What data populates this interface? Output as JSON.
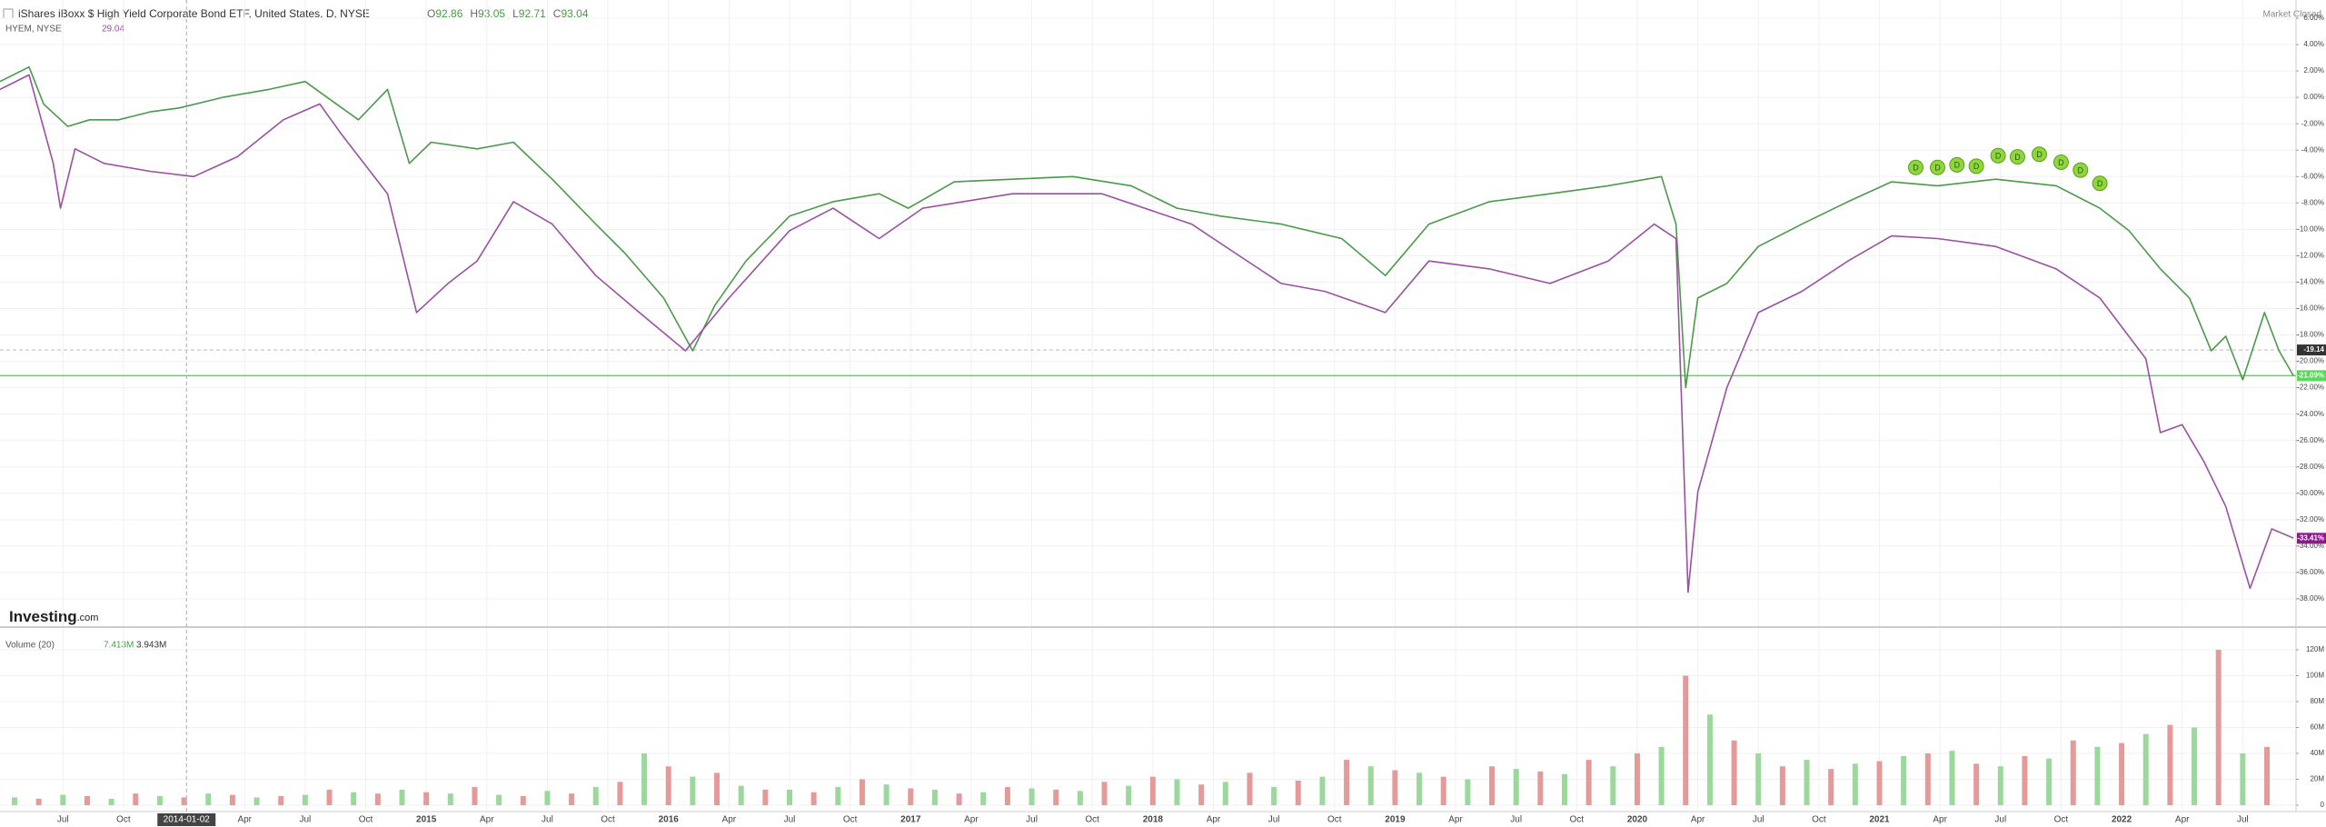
{
  "chart_data": {
    "type": "line",
    "title": "iShares iBoxx $ High Yield Corporate Bond ETF, United States, D, NYSE",
    "ohlc": [
      {
        "label": "O",
        "value": 92.86
      },
      {
        "label": "H",
        "value": 93.05
      },
      {
        "label": "L",
        "value": 92.71
      },
      {
        "label": "C",
        "value": 93.04
      }
    ],
    "compare_label": "HYEM, NYSE",
    "compare_value": 29.04,
    "status": "Market Closed",
    "logo": {
      "bold": "Investing",
      "rest": ".com"
    },
    "xlim": [
      2013.24,
      2022.72
    ],
    "xticks": [
      {
        "value": 2013.5,
        "label": "Jul"
      },
      {
        "value": 2013.75,
        "label": "Oct"
      },
      {
        "value": 2014.25,
        "label": "Apr"
      },
      {
        "value": 2014.5,
        "label": "Jul"
      },
      {
        "value": 2014.75,
        "label": "Oct"
      },
      2015,
      {
        "value": 2015.25,
        "label": "Apr"
      },
      {
        "value": 2015.5,
        "label": "Jul"
      },
      {
        "value": 2015.75,
        "label": "Oct"
      },
      2016,
      {
        "value": 2016.25,
        "label": "Apr"
      },
      {
        "value": 2016.5,
        "label": "Jul"
      },
      {
        "value": 2016.75,
        "label": "Oct"
      },
      2017,
      {
        "value": 2017.25,
        "label": "Apr"
      },
      {
        "value": 2017.5,
        "label": "Jul"
      },
      {
        "value": 2017.75,
        "label": "Oct"
      },
      2018,
      {
        "value": 2018.25,
        "label": "Apr"
      },
      {
        "value": 2018.5,
        "label": "Jul"
      },
      {
        "value": 2018.75,
        "label": "Oct"
      },
      2019,
      {
        "value": 2019.25,
        "label": "Apr"
      },
      {
        "value": 2019.5,
        "label": "Jul"
      },
      {
        "value": 2019.75,
        "label": "Oct"
      },
      2020,
      {
        "value": 2020.25,
        "label": "Apr"
      },
      {
        "value": 2020.5,
        "label": "Jul"
      },
      {
        "value": 2020.75,
        "label": "Oct"
      },
      2021,
      {
        "value": 2021.25,
        "label": "Apr"
      },
      {
        "value": 2021.5,
        "label": "Jul"
      },
      {
        "value": 2021.75,
        "label": "Oct"
      },
      2022,
      {
        "value": 2022.25,
        "label": "Apr"
      },
      {
        "value": 2022.5,
        "label": "Jul"
      }
    ],
    "ylim": [
      6,
      -38
    ],
    "yticks": [
      {
        "value": 6,
        "label": "6.00%"
      },
      {
        "value": 4,
        "label": "4.00%"
      },
      {
        "value": 2,
        "label": "2.00%"
      },
      {
        "value": 0,
        "label": "0.00%"
      },
      {
        "value": -2,
        "label": "-2.00%"
      },
      {
        "value": -4,
        "label": "-4.00%"
      },
      {
        "value": -6,
        "label": "-6.00%"
      },
      {
        "value": -8,
        "label": "-8.00%"
      },
      {
        "value": -10,
        "label": "-10.00%"
      },
      {
        "value": -12,
        "label": "-12.00%"
      },
      {
        "value": -14,
        "label": "-14.00%"
      },
      {
        "value": -16,
        "label": "-16.00%"
      },
      {
        "value": -18,
        "label": "-18.00%"
      },
      {
        "value": -20,
        "label": "-20.00%"
      },
      {
        "value": -22,
        "label": "-22.00%"
      },
      {
        "value": -24,
        "label": "-24.00%"
      },
      {
        "value": -26,
        "label": "-26.00%"
      },
      {
        "value": -28,
        "label": "-28.00%"
      },
      {
        "value": -30,
        "label": "-30.00%"
      },
      {
        "value": -32,
        "label": "-32.00%"
      },
      {
        "value": -34,
        "label": "-34.00%"
      },
      {
        "value": -36,
        "label": "-36.00%"
      },
      {
        "value": -38,
        "label": "-38.00%"
      }
    ],
    "grid": true,
    "series": [
      {
        "color": "#4a9a4a",
        "x": [
          2013.24,
          2013.36,
          2013.42,
          2013.52,
          2013.61,
          2013.73,
          2013.86,
          2013.98,
          2014.16,
          2014.35,
          2014.5,
          2014.56,
          2014.72,
          2014.84,
          2014.93,
          2015.02,
          2015.21,
          2015.36,
          2015.52,
          2015.7,
          2015.82,
          2015.98,
          2016.1,
          2016.19,
          2016.32,
          2016.5,
          2016.68,
          2016.87,
          2016.99,
          2017.18,
          2017.42,
          2017.67,
          2017.91,
          2018.1,
          2018.28,
          2018.53,
          2018.78,
          2018.96,
          2019.14,
          2019.39,
          2019.64,
          2019.88,
          2020.1,
          2020.16,
          2020.2,
          2020.25,
          2020.37,
          2020.5,
          2020.68,
          2020.87,
          2021.05,
          2021.24,
          2021.48,
          2021.73,
          2021.91,
          2022.03,
          2022.16,
          2022.28,
          2022.37,
          2022.43,
          2022.5,
          2022.59,
          2022.65,
          2022.71
        ],
        "values": [
          1.2,
          2.3,
          -0.5,
          -2.2,
          -1.7,
          -1.7,
          -1.1,
          -0.8,
          0,
          0.6,
          1.2,
          0.4,
          -1.7,
          0.6,
          -5,
          -3.4,
          -3.9,
          -3.4,
          -6.2,
          -9.6,
          -11.8,
          -15.2,
          -19.2,
          -15.8,
          -12.4,
          -9,
          -7.9,
          -7.3,
          -8.4,
          -6.4,
          -6.2,
          -6,
          -6.7,
          -8.4,
          -9,
          -9.6,
          -10.7,
          -13.5,
          -9.6,
          -7.9,
          -7.3,
          -6.7,
          -6,
          -9.6,
          -22,
          -15.2,
          -14.1,
          -11.3,
          -9.6,
          -7.9,
          -6.4,
          -6.7,
          -6.2,
          -6.7,
          -8.4,
          -10.1,
          -13,
          -15.2,
          -19.2,
          -18.1,
          -21.4,
          -16.3,
          -19.2,
          -21.1
        ]
      },
      {
        "color": "#9b4fa3",
        "x": [
          2013.24,
          2013.36,
          2013.46,
          2013.49,
          2013.55,
          2013.67,
          2013.86,
          2014.04,
          2014.22,
          2014.41,
          2014.56,
          2014.65,
          2014.84,
          2014.96,
          2015.09,
          2015.21,
          2015.36,
          2015.52,
          2015.7,
          2015.88,
          2016.07,
          2016.25,
          2016.5,
          2016.68,
          2016.87,
          2017.05,
          2017.42,
          2017.79,
          2018.16,
          2018.34,
          2018.53,
          2018.71,
          2018.96,
          2019.14,
          2019.39,
          2019.64,
          2019.88,
          2020.07,
          2020.16,
          2020.21,
          2020.25,
          2020.37,
          2020.5,
          2020.68,
          2020.87,
          2021.05,
          2021.24,
          2021.48,
          2021.73,
          2021.91,
          2022.1,
          2022.16,
          2022.25,
          2022.34,
          2022.43,
          2022.53,
          2022.62,
          2022.71
        ],
        "values": [
          0.6,
          1.7,
          -5,
          -8.4,
          -3.9,
          -5,
          -5.6,
          -6,
          -4.5,
          -1.7,
          -0.5,
          -2.8,
          -7.3,
          -16.3,
          -14.1,
          -12.4,
          -7.9,
          -9.6,
          -13.5,
          -16.3,
          -19.2,
          -15.2,
          -10.1,
          -8.4,
          -10.7,
          -8.4,
          -7.3,
          -7.3,
          -9.6,
          -11.8,
          -14.1,
          -14.7,
          -16.3,
          -12.4,
          -13,
          -14.1,
          -12.4,
          -9.6,
          -10.7,
          -37.5,
          -29.9,
          -22,
          -16.3,
          -14.7,
          -12.4,
          -10.5,
          -10.7,
          -11.3,
          -13,
          -15.2,
          -19.8,
          -25.4,
          -24.8,
          -27.6,
          -31,
          -37.2,
          -32.7,
          -33.4
        ]
      }
    ],
    "price_line": {
      "value": -21.09,
      "label": "-21.09%",
      "color": "#5cd65c"
    },
    "tags": [
      {
        "value": -19.14,
        "label": "-19.14",
        "color": "#333333"
      },
      {
        "value": -33.41,
        "label": "-33.41%",
        "color": "#8b1a8b"
      }
    ],
    "crosshair": {
      "x": {
        "value": 2014.01,
        "label": "2014-01-02"
      },
      "y": -19.14
    },
    "dividends": {
      "label": "D",
      "color": "#8fd63c",
      "x": [
        2021.15,
        2021.24,
        2021.32,
        2021.4,
        2021.49,
        2021.57,
        2021.66,
        2021.75,
        2021.83,
        2021.91
      ],
      "values": [
        -6,
        -6,
        -5.8,
        -5.9,
        -5.1,
        -5.2,
        -5,
        -5.6,
        -6.2,
        -7.2
      ]
    },
    "volume": {
      "title": "Volume (20)",
      "legend_values": [
        "7.413M",
        "3.943M"
      ],
      "ylim": [
        0,
        120
      ],
      "yticks": [
        0,
        {
          "value": 20,
          "label": "20M"
        },
        {
          "value": 40,
          "label": "40M"
        },
        {
          "value": 60,
          "label": "60M"
        },
        {
          "value": 80,
          "label": "80M"
        },
        {
          "value": 100,
          "label": "100M"
        },
        {
          "value": 120,
          "label": "120M"
        }
      ],
      "series": [
        {
          "color": "#9bd89b",
          "x": [
            2013.3,
            2013.5,
            2013.7,
            2013.9,
            2014.1,
            2014.3,
            2014.5,
            2014.7,
            2014.9,
            2015.1,
            2015.3,
            2015.5,
            2015.7,
            2015.9,
            2016.1,
            2016.3,
            2016.5,
            2016.7,
            2016.9,
            2017.1,
            2017.3,
            2017.5,
            2017.7,
            2017.9,
            2018.1,
            2018.3,
            2018.5,
            2018.7,
            2018.9,
            2019.1,
            2019.3,
            2019.5,
            2019.7,
            2019.9,
            2020.1,
            2020.3,
            2020.5,
            2020.7,
            2020.9,
            2021.1,
            2021.3,
            2021.5,
            2021.7,
            2021.9,
            2022.1,
            2022.3,
            2022.5
          ],
          "values": [
            6,
            8,
            5,
            7,
            9,
            6,
            8,
            10,
            12,
            9,
            8,
            11,
            14,
            40,
            22,
            15,
            12,
            14,
            16,
            12,
            10,
            13,
            11,
            15,
            20,
            18,
            14,
            22,
            30,
            25,
            20,
            28,
            24,
            30,
            45,
            70,
            40,
            35,
            32,
            38,
            42,
            30,
            36,
            45,
            55,
            60,
            40
          ]
        },
        {
          "color": "#e59a9a",
          "x": [
            2013.4,
            2013.6,
            2013.8,
            2014.0,
            2014.2,
            2014.4,
            2014.6,
            2014.8,
            2015.0,
            2015.2,
            2015.4,
            2015.6,
            2015.8,
            2016.0,
            2016.2,
            2016.4,
            2016.6,
            2016.8,
            2017.0,
            2017.2,
            2017.4,
            2017.6,
            2017.8,
            2018.0,
            2018.2,
            2018.4,
            2018.6,
            2018.8,
            2019.0,
            2019.2,
            2019.4,
            2019.6,
            2019.8,
            2020.0,
            2020.2,
            2020.4,
            2020.6,
            2020.8,
            2021.0,
            2021.2,
            2021.4,
            2021.6,
            2021.8,
            2022.0,
            2022.2,
            2022.4,
            2022.6
          ],
          "values": [
            5,
            7,
            9,
            6,
            8,
            7,
            12,
            9,
            10,
            14,
            7,
            9,
            18,
            30,
            25,
            12,
            10,
            20,
            13,
            9,
            14,
            12,
            18,
            22,
            16,
            25,
            19,
            35,
            27,
            22,
            30,
            26,
            35,
            40,
            100,
            50,
            30,
            28,
            34,
            40,
            32,
            38,
            50,
            48,
            62,
            120,
            45
          ]
        }
      ]
    }
  }
}
